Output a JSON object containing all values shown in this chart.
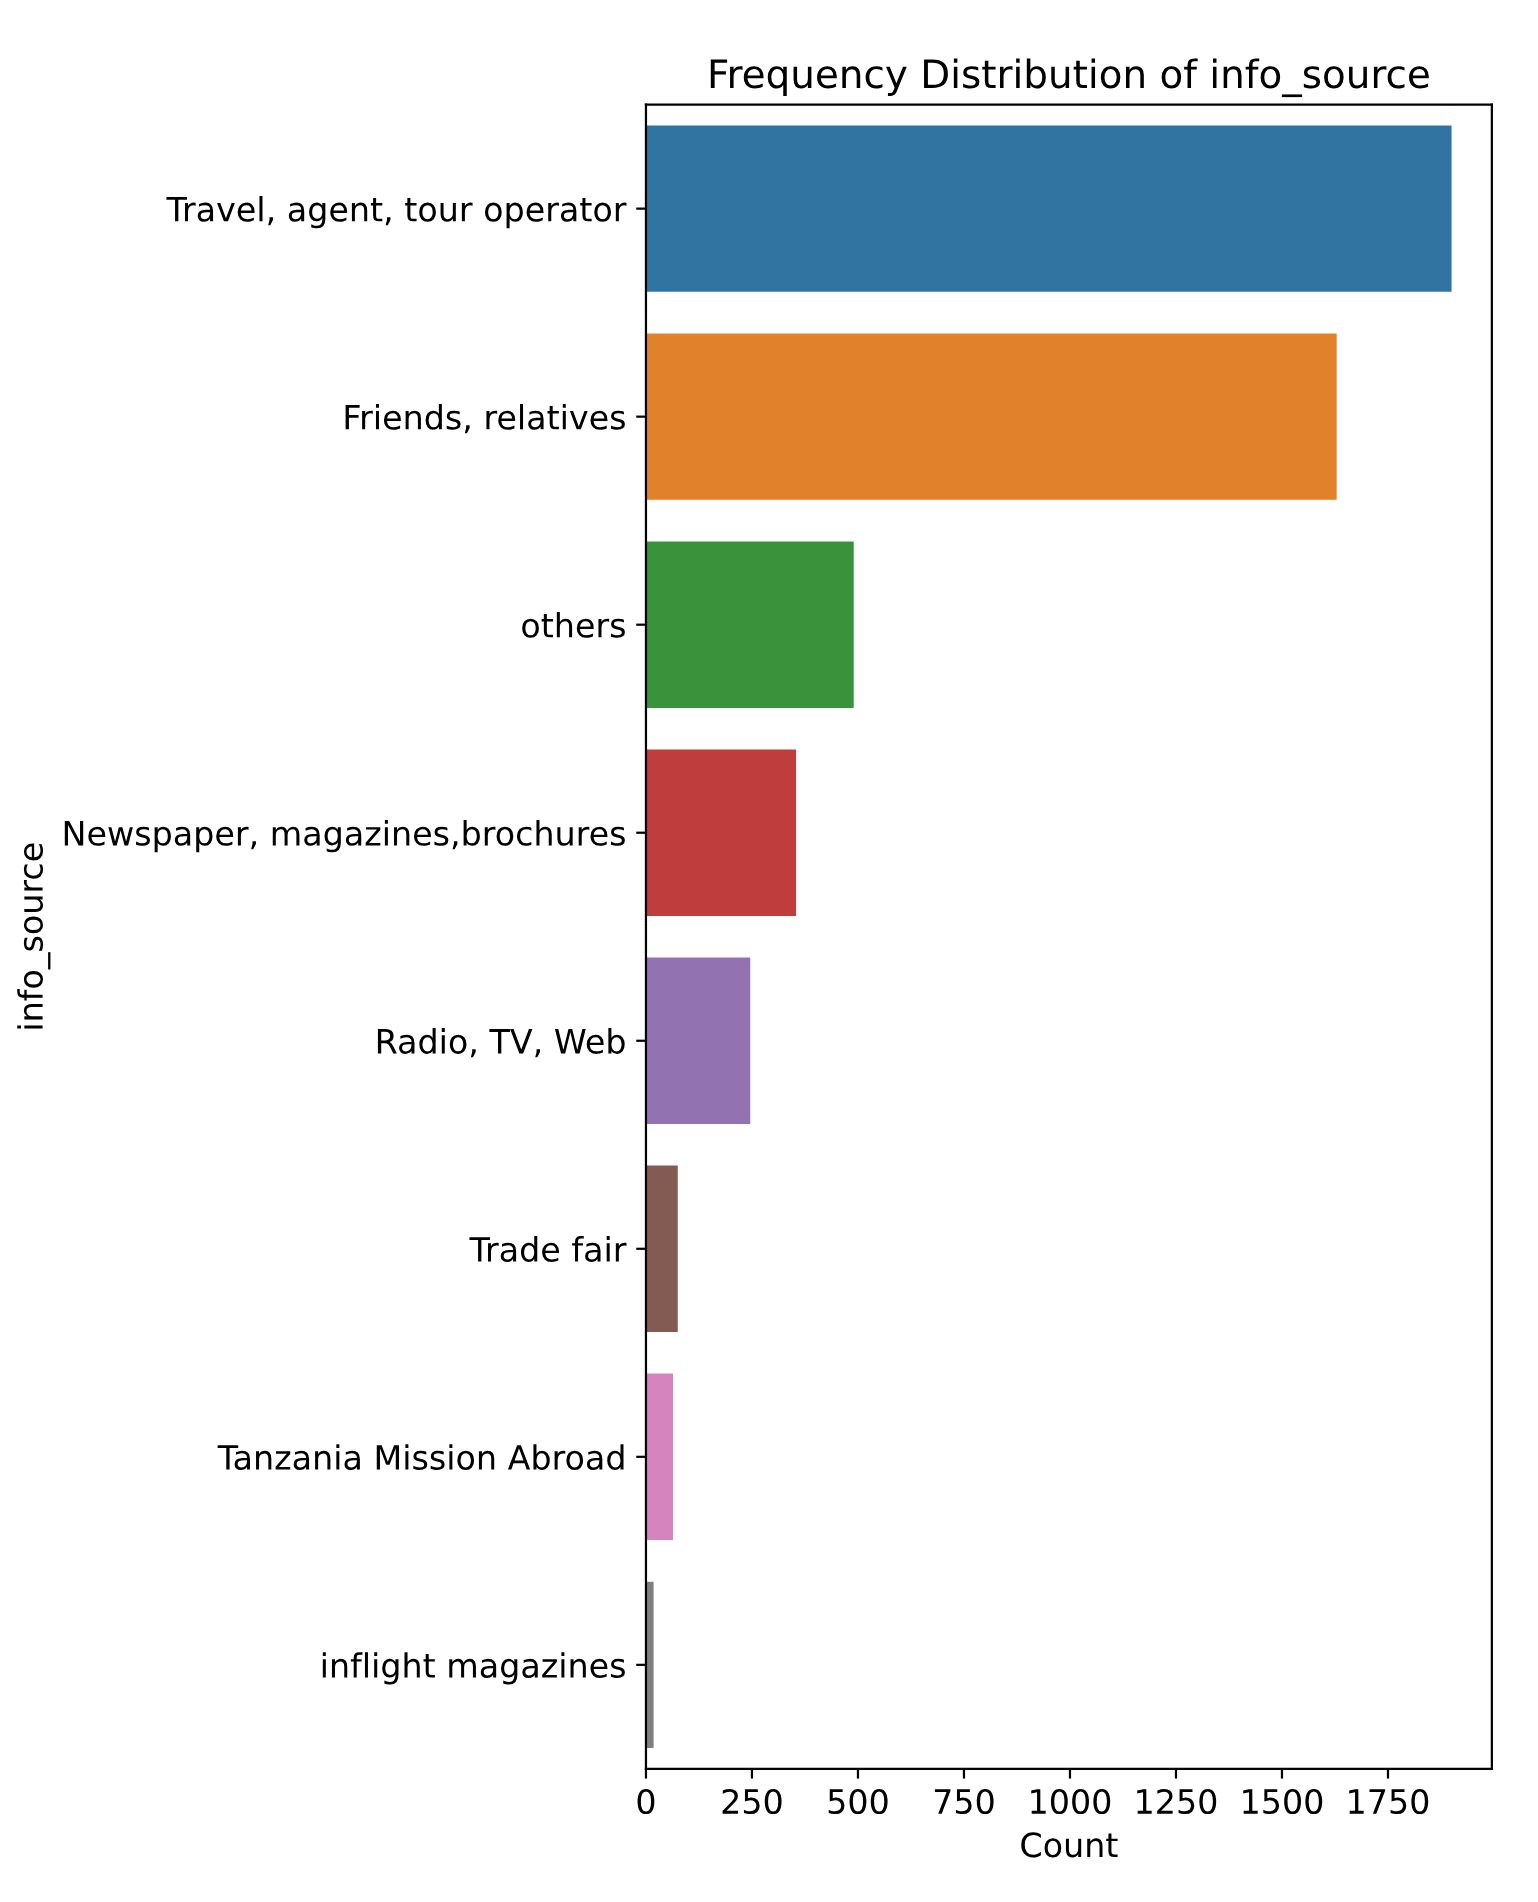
{
  "chart_data": {
    "type": "bar",
    "orientation": "horizontal",
    "title": "Frequency Distribution of info_source",
    "xlabel": "Count",
    "ylabel": "info_source",
    "categories": [
      "Travel, agent, tour operator",
      "Friends, relatives",
      "others",
      "Newspaper, magazines,brochures",
      "Radio, TV, Web",
      "Trade fair",
      "Tanzania Mission Abroad",
      "inflight magazines"
    ],
    "values": [
      1900,
      1629,
      490,
      354,
      246,
      75,
      64,
      18
    ],
    "colors": [
      "#3274a1",
      "#e1812c",
      "#3a923a",
      "#c03d3e",
      "#9372b2",
      "#845b53",
      "#d684bd",
      "#7f7f7f"
    ],
    "xlim": [
      0,
      1995
    ],
    "xticks": [
      0,
      250,
      500,
      750,
      1000,
      1250,
      1500,
      1750
    ],
    "grid": false,
    "legend": false
  }
}
